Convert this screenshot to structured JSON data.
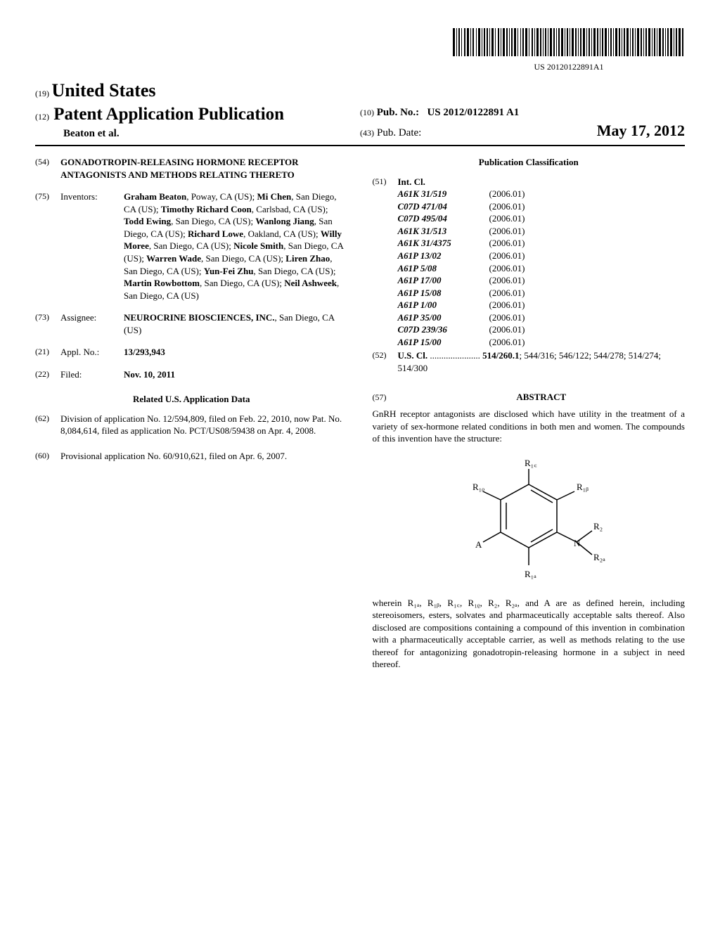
{
  "barcode_text": "US 20120122891A1",
  "header": {
    "country_num": "(19)",
    "country": "United States",
    "pub_num": "(12)",
    "pub_type": "Patent Application Publication",
    "authors": "Beaton et al.",
    "pubno_num": "(10)",
    "pubno_label": "Pub. No.:",
    "pubno_value": "US 2012/0122891 A1",
    "pubdate_num": "(43)",
    "pubdate_label": "Pub. Date:",
    "pubdate_value": "May 17, 2012"
  },
  "left": {
    "title": {
      "num": "(54)",
      "text": "GONADOTROPIN-RELEASING HORMONE RECEPTOR ANTAGONISTS AND METHODS RELATING THERETO"
    },
    "inventors": {
      "num": "(75)",
      "label": "Inventors:",
      "list": [
        {
          "name": "Graham Beaton",
          "loc": ", Poway, CA (US); "
        },
        {
          "name": "Mi Chen",
          "loc": ", San Diego, CA (US); "
        },
        {
          "name": "Timothy Richard Coon",
          "loc": ", Carlsbad, CA (US); "
        },
        {
          "name": "Todd Ewing",
          "loc": ", San Diego, CA (US); "
        },
        {
          "name": "Wanlong Jiang",
          "loc": ", San Diego, CA (US); "
        },
        {
          "name": "Richard Lowe",
          "loc": ", Oakland, CA (US); "
        },
        {
          "name": "Willy Moree",
          "loc": ", San Diego, CA (US); "
        },
        {
          "name": "Nicole Smith",
          "loc": ", San Diego, CA (US); "
        },
        {
          "name": "Warren Wade",
          "loc": ", San Diego, CA (US); "
        },
        {
          "name": "Liren Zhao",
          "loc": ", San Diego, CA (US); "
        },
        {
          "name": "Yun-Fei Zhu",
          "loc": ", San Diego, CA (US); "
        },
        {
          "name": "Martin Rowbottom",
          "loc": ", San Diego, CA (US); "
        },
        {
          "name": "Neil Ashweek",
          "loc": ", San Diego, CA (US)"
        }
      ]
    },
    "assignee": {
      "num": "(73)",
      "label": "Assignee:",
      "name": "NEUROCRINE BIOSCIENCES, INC.",
      "loc": ", San Diego, CA (US)"
    },
    "appl_no": {
      "num": "(21)",
      "label": "Appl. No.:",
      "value": "13/293,943"
    },
    "filed": {
      "num": "(22)",
      "label": "Filed:",
      "value": "Nov. 10, 2011"
    },
    "related_heading": "Related U.S. Application Data",
    "division": {
      "num": "(62)",
      "text": "Division of application No. 12/594,809, filed on Feb. 22, 2010, now Pat. No. 8,084,614, filed as application No. PCT/US08/59438 on Apr. 4, 2008."
    },
    "provisional": {
      "num": "(60)",
      "text": "Provisional application No. 60/910,621, filed on Apr. 6, 2007."
    }
  },
  "right": {
    "pub_class_heading": "Publication Classification",
    "int_cl": {
      "num": "(51)",
      "label": "Int. Cl.",
      "rows": [
        {
          "code": "A61K 31/519",
          "year": "(2006.01)"
        },
        {
          "code": "C07D 471/04",
          "year": "(2006.01)"
        },
        {
          "code": "C07D 495/04",
          "year": "(2006.01)"
        },
        {
          "code": "A61K 31/513",
          "year": "(2006.01)"
        },
        {
          "code": "A61K 31/4375",
          "year": "(2006.01)"
        },
        {
          "code": "A61P 13/02",
          "year": "(2006.01)"
        },
        {
          "code": "A61P 5/08",
          "year": "(2006.01)"
        },
        {
          "code": "A61P 17/00",
          "year": "(2006.01)"
        },
        {
          "code": "A61P 15/08",
          "year": "(2006.01)"
        },
        {
          "code": "A61P 1/00",
          "year": "(2006.01)"
        },
        {
          "code": "A61P 35/00",
          "year": "(2006.01)"
        },
        {
          "code": "C07D 239/36",
          "year": "(2006.01)"
        },
        {
          "code": "A61P 15/00",
          "year": "(2006.01)"
        }
      ]
    },
    "us_cl": {
      "num": "(52)",
      "label": "U.S. Cl.",
      "dots": " ...................... ",
      "value1": "514/260.1",
      "value2": "; 544/316; 546/122; 544/278; 514/274; 514/300"
    },
    "abstract_num": "(57)",
    "abstract_heading": "ABSTRACT",
    "abstract_text1": "GnRH receptor antagonists are disclosed which have utility in the treatment of a variety of sex-hormone related conditions in both men and women. The compounds of this invention have the structure:",
    "abstract_text2": "wherein R₁ₐ, R₁ᵦ, R₁꜀, R₁ᵨ, R₂, R₂ₐ, and A are as defined herein, including stereoisomers, esters, solvates and pharmaceutically acceptable salts thereof. Also disclosed are compositions containing a compound of this invention in combination with a pharmaceutically acceptable carrier, as well as methods relating to the use thereof for antagonizing gonadotropin-releasing hormone in a subject in need thereof.",
    "structure_labels": {
      "r1a": "R₁ₐ",
      "r1b": "R₁ᵦ",
      "r1c": "R₁꜀",
      "r1d": "R₁ᵨ",
      "r2": "R₂",
      "r2a": "R₂ₐ",
      "a": "A",
      "n": "N"
    }
  }
}
